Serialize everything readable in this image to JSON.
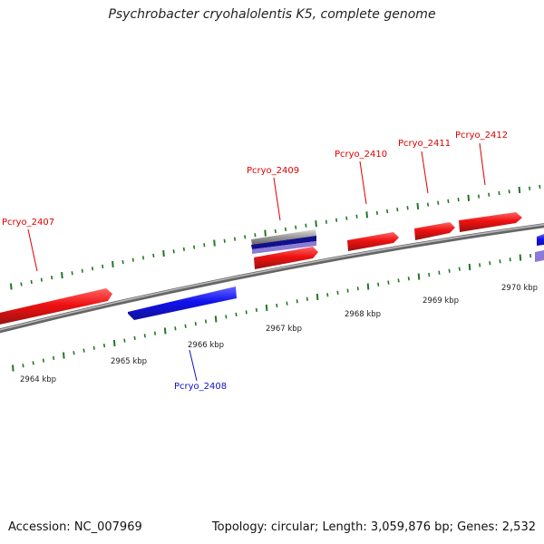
{
  "title": "Psychrobacter cryohalolentis K5, complete genome",
  "footer": {
    "accession": "Accession: NC_007969",
    "stats": "Topology: circular; Length: 3,059,876 bp; Genes: 2,532"
  },
  "colors": {
    "forward_gene": "#ee1111",
    "reverse_gene": "#1111ee",
    "backbone": "#8a8a8a",
    "ticks": "#227722"
  },
  "ticks": [
    {
      "label": "2964 kbp"
    },
    {
      "label": "2965 kbp"
    },
    {
      "label": "2966 kbp"
    },
    {
      "label": "2967 kbp"
    },
    {
      "label": "2968 kbp"
    },
    {
      "label": "2969 kbp"
    },
    {
      "label": "2970 kbp"
    }
  ],
  "genes": [
    {
      "name": "Pcryo_2407",
      "strand": "+"
    },
    {
      "name": "Pcryo_2408",
      "strand": "-"
    },
    {
      "name": "Pcryo_2409",
      "strand": "+"
    },
    {
      "name": "Pcryo_2410",
      "strand": "+"
    },
    {
      "name": "Pcryo_2411",
      "strand": "+"
    },
    {
      "name": "Pcryo_2412",
      "strand": "+"
    }
  ]
}
